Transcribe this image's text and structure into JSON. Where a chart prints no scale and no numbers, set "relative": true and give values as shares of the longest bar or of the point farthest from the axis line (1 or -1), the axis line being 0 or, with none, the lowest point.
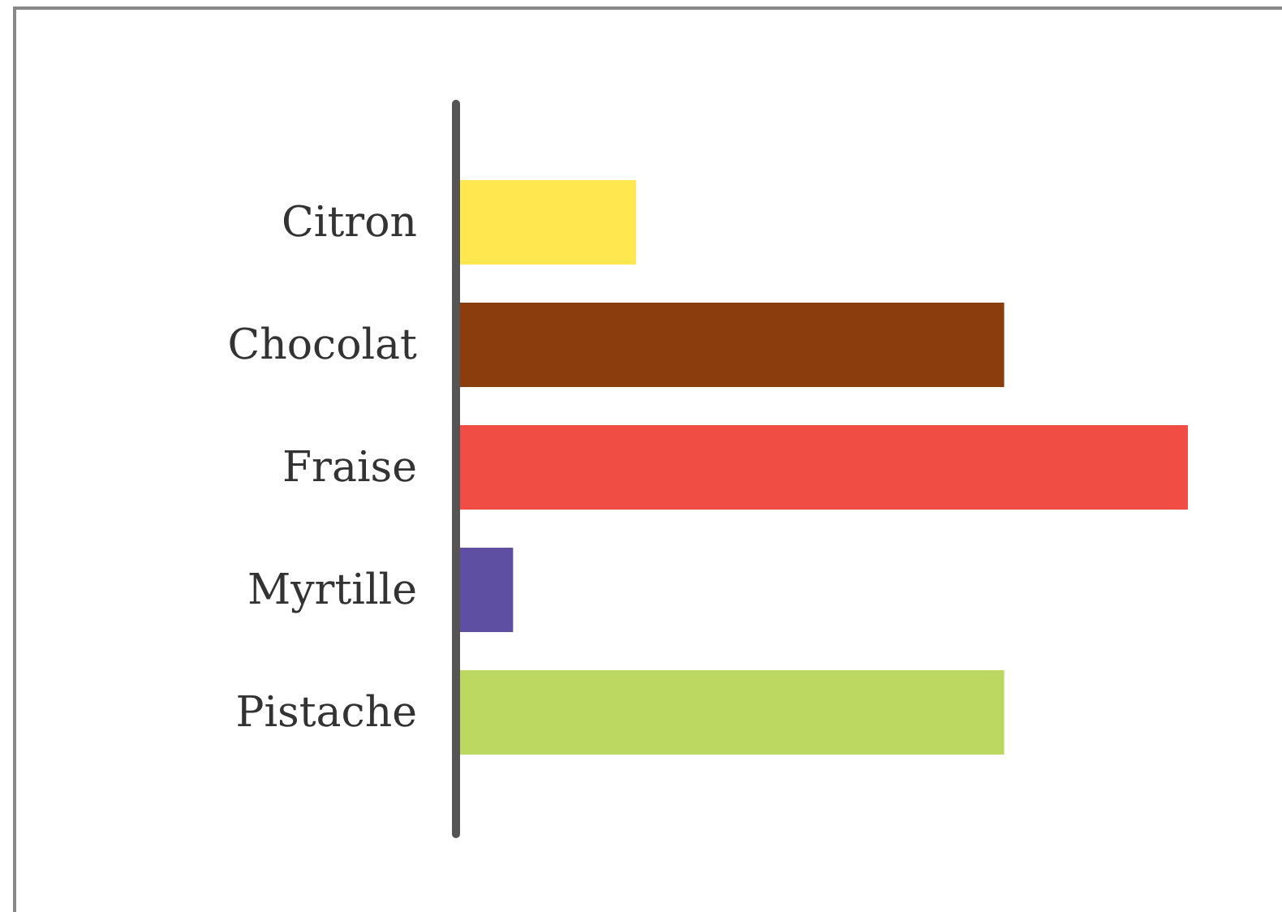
{
  "chart_data": {
    "type": "bar",
    "orientation": "horizontal",
    "relative": true,
    "categories": [
      "Citron",
      "Chocolat",
      "Fraise",
      "Myrtille",
      "Pistache"
    ],
    "values": [
      0.246,
      0.749,
      1,
      0.078,
      0.749
    ],
    "colors": [
      "#ffe84f",
      "#8b3d0e",
      "#f04e45",
      "#5f4fa3",
      "#bdd860"
    ]
  }
}
